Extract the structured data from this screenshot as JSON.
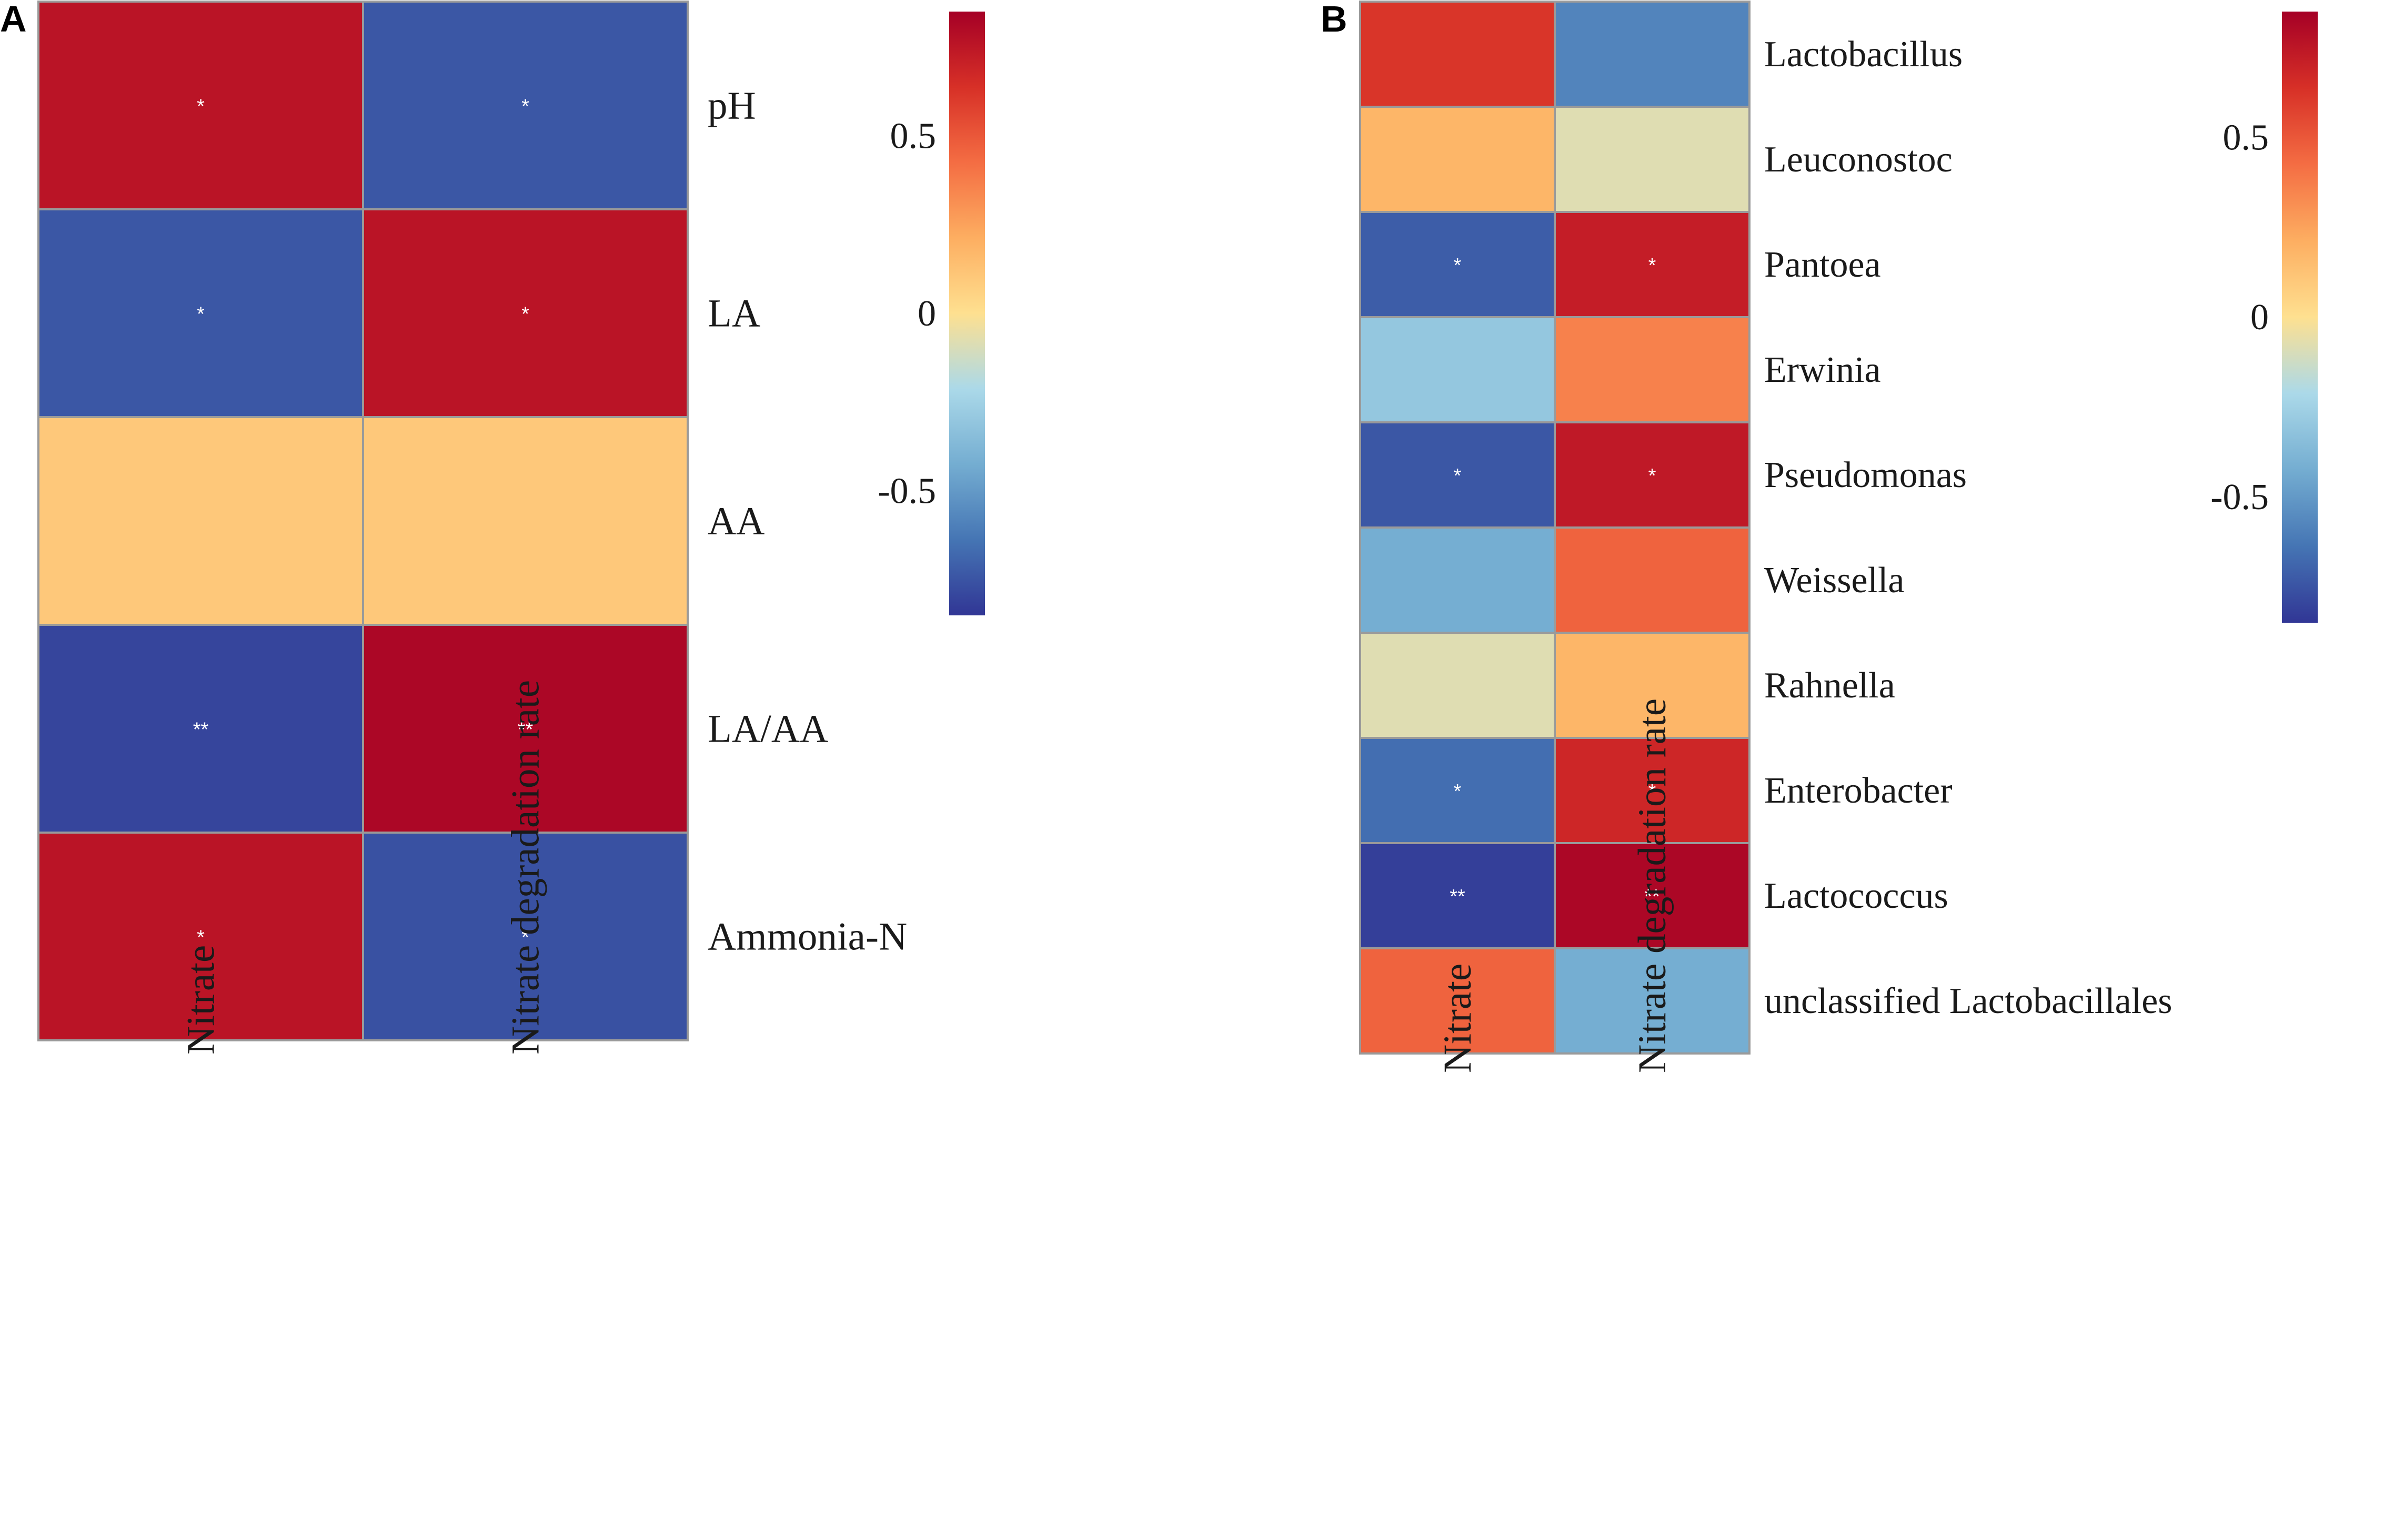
{
  "chart_data": [
    {
      "panel": "A",
      "type": "heatmap",
      "columns": [
        "Nitrate",
        "Nitrate degradation rate"
      ],
      "rows": [
        "pH",
        "LA",
        "AA",
        "LA/AA",
        "Ammonia-N"
      ],
      "values": [
        [
          0.76,
          -0.74
        ],
        [
          -0.74,
          0.76
        ],
        [
          0.1,
          0.1
        ],
        [
          -0.8,
          0.82
        ],
        [
          0.76,
          -0.76
        ]
      ],
      "significance": [
        [
          "*",
          "*"
        ],
        [
          "*",
          "*"
        ],
        [
          "",
          ""
        ],
        [
          "**",
          "**"
        ],
        [
          "*",
          "*"
        ]
      ],
      "colorbar": {
        "range": [
          -0.85,
          0.85
        ],
        "ticks": [
          {
            "value": 0.5,
            "label": "0.5"
          },
          {
            "value": 0,
            "label": "0"
          },
          {
            "value": -0.5,
            "label": "-0.5"
          }
        ]
      }
    },
    {
      "panel": "B",
      "type": "heatmap",
      "columns": [
        "Nitrate",
        "Nitrate degradation rate"
      ],
      "rows": [
        "Lactobacillus",
        "Leuconostoc",
        "Pantoea",
        "Erwinia",
        "Pseudomonas",
        "Weissella",
        "Rahnella",
        "Enterobacter",
        "Lactococcus",
        "unclassified Lactobacillales"
      ],
      "values": [
        [
          0.62,
          -0.58
        ],
        [
          0.18,
          -0.08
        ],
        [
          -0.72,
          0.72
        ],
        [
          -0.3,
          0.36
        ],
        [
          -0.74,
          0.74
        ],
        [
          -0.42,
          0.46
        ],
        [
          -0.08,
          0.18
        ],
        [
          -0.66,
          0.68
        ],
        [
          -0.82,
          0.82
        ],
        [
          0.46,
          -0.42
        ]
      ],
      "significance": [
        [
          "",
          ""
        ],
        [
          "",
          ""
        ],
        [
          "*",
          "*"
        ],
        [
          "",
          ""
        ],
        [
          "*",
          "*"
        ],
        [
          "",
          ""
        ],
        [
          "",
          ""
        ],
        [
          "*",
          "*"
        ],
        [
          "**",
          "**"
        ],
        [
          "",
          ""
        ]
      ],
      "colorbar": {
        "range": [
          -0.85,
          0.85
        ],
        "ticks": [
          {
            "value": 0.5,
            "label": "0.5"
          },
          {
            "value": 0,
            "label": "0"
          },
          {
            "value": -0.5,
            "label": "-0.5"
          }
        ]
      }
    }
  ],
  "colors": {
    "scale": [
      "#313695",
      "#4575b4",
      "#74add1",
      "#abd9e9",
      "#fee090",
      "#fdae61",
      "#f46d43",
      "#d73027",
      "#a50026"
    ],
    "cell_border": "#9a9a9a",
    "significance_text": "#ffffff"
  }
}
